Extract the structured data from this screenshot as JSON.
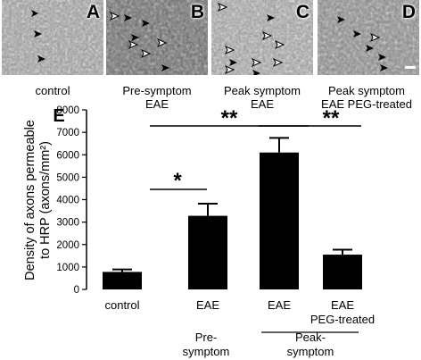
{
  "panels": [
    {
      "letter": "A",
      "caption": [
        "control"
      ]
    },
    {
      "letter": "B",
      "caption": [
        "Pre-symptom",
        "EAE"
      ]
    },
    {
      "letter": "C",
      "caption": [
        "Peak symptom",
        "EAE"
      ]
    },
    {
      "letter": "D",
      "caption": [
        "Peak symptom",
        "EAE PEG-treated"
      ]
    }
  ],
  "chart_data": {
    "type": "bar",
    "panel_letter": "E",
    "categories": [
      "control",
      "EAE",
      "EAE",
      "EAE\nPEG-treated"
    ],
    "values": [
      780,
      3280,
      6100,
      1550
    ],
    "errors": [
      110,
      540,
      650,
      220
    ],
    "ylabel": "Density of axons permeable to HRP (axons/mm²)",
    "ylabel_lines": [
      "Density of axons permeable",
      "to HRP (axons/mm²)"
    ],
    "ylim": [
      0,
      8000
    ],
    "yticks": [
      0,
      1000,
      2000,
      3000,
      4000,
      5000,
      6000,
      7000,
      8000
    ],
    "groups": [
      {
        "label": [
          "Pre-",
          "symptom"
        ],
        "categories": [
          1
        ]
      },
      {
        "label": [
          "Peak-",
          "symptom"
        ],
        "categories": [
          2,
          3
        ]
      }
    ],
    "significance": [
      {
        "from": 0,
        "to": 1,
        "label": "*"
      },
      {
        "from": 0,
        "to": 2,
        "label": "**"
      },
      {
        "from": 2,
        "to": 3,
        "label": "**"
      }
    ],
    "bar_color": "#000000"
  }
}
